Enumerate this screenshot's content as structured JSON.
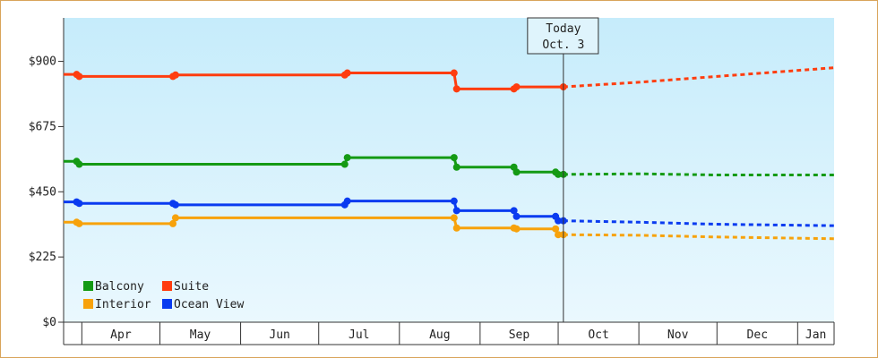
{
  "chart_data": {
    "type": "line",
    "y_axis": {
      "ticks": [
        0,
        225,
        450,
        675,
        900
      ],
      "tick_labels": [
        "$0",
        "$225",
        "$450",
        "$675",
        "$900"
      ],
      "ylim": [
        0,
        1050
      ]
    },
    "x_axis": {
      "months": [
        "Apr",
        "May",
        "Jun",
        "Jul",
        "Aug",
        "Sep",
        "Oct",
        "Nov",
        "Dec",
        "Jan"
      ],
      "xlim": [
        "2019-03-25",
        "2020-01-15"
      ]
    },
    "today_marker": {
      "line1": "Today",
      "line2": "Oct. 3",
      "date": "2019-10-03"
    },
    "legend": [
      {
        "name": "Balcony",
        "color": "#149a14"
      },
      {
        "name": "Suite",
        "color": "#ff3d0f"
      },
      {
        "name": "Interior",
        "color": "#f7a20b"
      },
      {
        "name": "Ocean View",
        "color": "#0a3bf0"
      }
    ],
    "series": [
      {
        "name": "Suite",
        "color": "#ff3d0f",
        "points": [
          [
            "2019-03-25",
            855
          ],
          [
            "2019-03-30",
            855
          ],
          [
            "2019-03-31",
            848
          ],
          [
            "2019-05-06",
            848
          ],
          [
            "2019-05-07",
            853
          ],
          [
            "2019-07-11",
            853
          ],
          [
            "2019-07-12",
            860
          ],
          [
            "2019-08-22",
            860
          ],
          [
            "2019-08-23",
            805
          ],
          [
            "2019-09-14",
            805
          ],
          [
            "2019-09-15",
            812
          ],
          [
            "2019-10-03",
            812
          ]
        ],
        "forecast": [
          [
            "2019-10-03",
            812
          ],
          [
            "2019-11-01",
            828
          ],
          [
            "2019-12-01",
            848
          ],
          [
            "2020-01-15",
            878
          ]
        ]
      },
      {
        "name": "Balcony",
        "color": "#149a14",
        "points": [
          [
            "2019-03-25",
            555
          ],
          [
            "2019-03-30",
            555
          ],
          [
            "2019-03-31",
            545
          ],
          [
            "2019-05-06",
            545
          ],
          [
            "2019-05-07",
            545
          ],
          [
            "2019-07-11",
            545
          ],
          [
            "2019-07-12",
            568
          ],
          [
            "2019-08-22",
            568
          ],
          [
            "2019-08-23",
            535
          ],
          [
            "2019-09-14",
            535
          ],
          [
            "2019-09-15",
            518
          ],
          [
            "2019-09-30",
            518
          ],
          [
            "2019-10-01",
            510
          ],
          [
            "2019-10-03",
            510
          ]
        ],
        "forecast": [
          [
            "2019-10-03",
            510
          ],
          [
            "2019-11-01",
            512
          ],
          [
            "2019-12-01",
            508
          ],
          [
            "2020-01-15",
            508
          ]
        ]
      },
      {
        "name": "Ocean View",
        "color": "#0a3bf0",
        "points": [
          [
            "2019-03-25",
            415
          ],
          [
            "2019-03-30",
            415
          ],
          [
            "2019-03-31",
            410
          ],
          [
            "2019-05-06",
            410
          ],
          [
            "2019-05-07",
            405
          ],
          [
            "2019-07-11",
            405
          ],
          [
            "2019-07-12",
            418
          ],
          [
            "2019-08-22",
            418
          ],
          [
            "2019-08-23",
            385
          ],
          [
            "2019-09-14",
            385
          ],
          [
            "2019-09-15",
            365
          ],
          [
            "2019-09-30",
            365
          ],
          [
            "2019-10-01",
            350
          ],
          [
            "2019-10-03",
            350
          ]
        ],
        "forecast": [
          [
            "2019-10-03",
            350
          ],
          [
            "2019-11-01",
            345
          ],
          [
            "2019-12-01",
            338
          ],
          [
            "2020-01-15",
            333
          ]
        ]
      },
      {
        "name": "Interior",
        "color": "#f7a20b",
        "points": [
          [
            "2019-03-25",
            345
          ],
          [
            "2019-03-30",
            345
          ],
          [
            "2019-03-31",
            340
          ],
          [
            "2019-05-06",
            340
          ],
          [
            "2019-05-07",
            360
          ],
          [
            "2019-08-22",
            360
          ],
          [
            "2019-08-23",
            325
          ],
          [
            "2019-09-14",
            325
          ],
          [
            "2019-09-15",
            322
          ],
          [
            "2019-09-30",
            322
          ],
          [
            "2019-10-01",
            302
          ],
          [
            "2019-10-03",
            302
          ]
        ],
        "forecast": [
          [
            "2019-10-03",
            302
          ],
          [
            "2019-11-01",
            300
          ],
          [
            "2019-12-01",
            294
          ],
          [
            "2020-01-15",
            288
          ]
        ]
      }
    ]
  }
}
